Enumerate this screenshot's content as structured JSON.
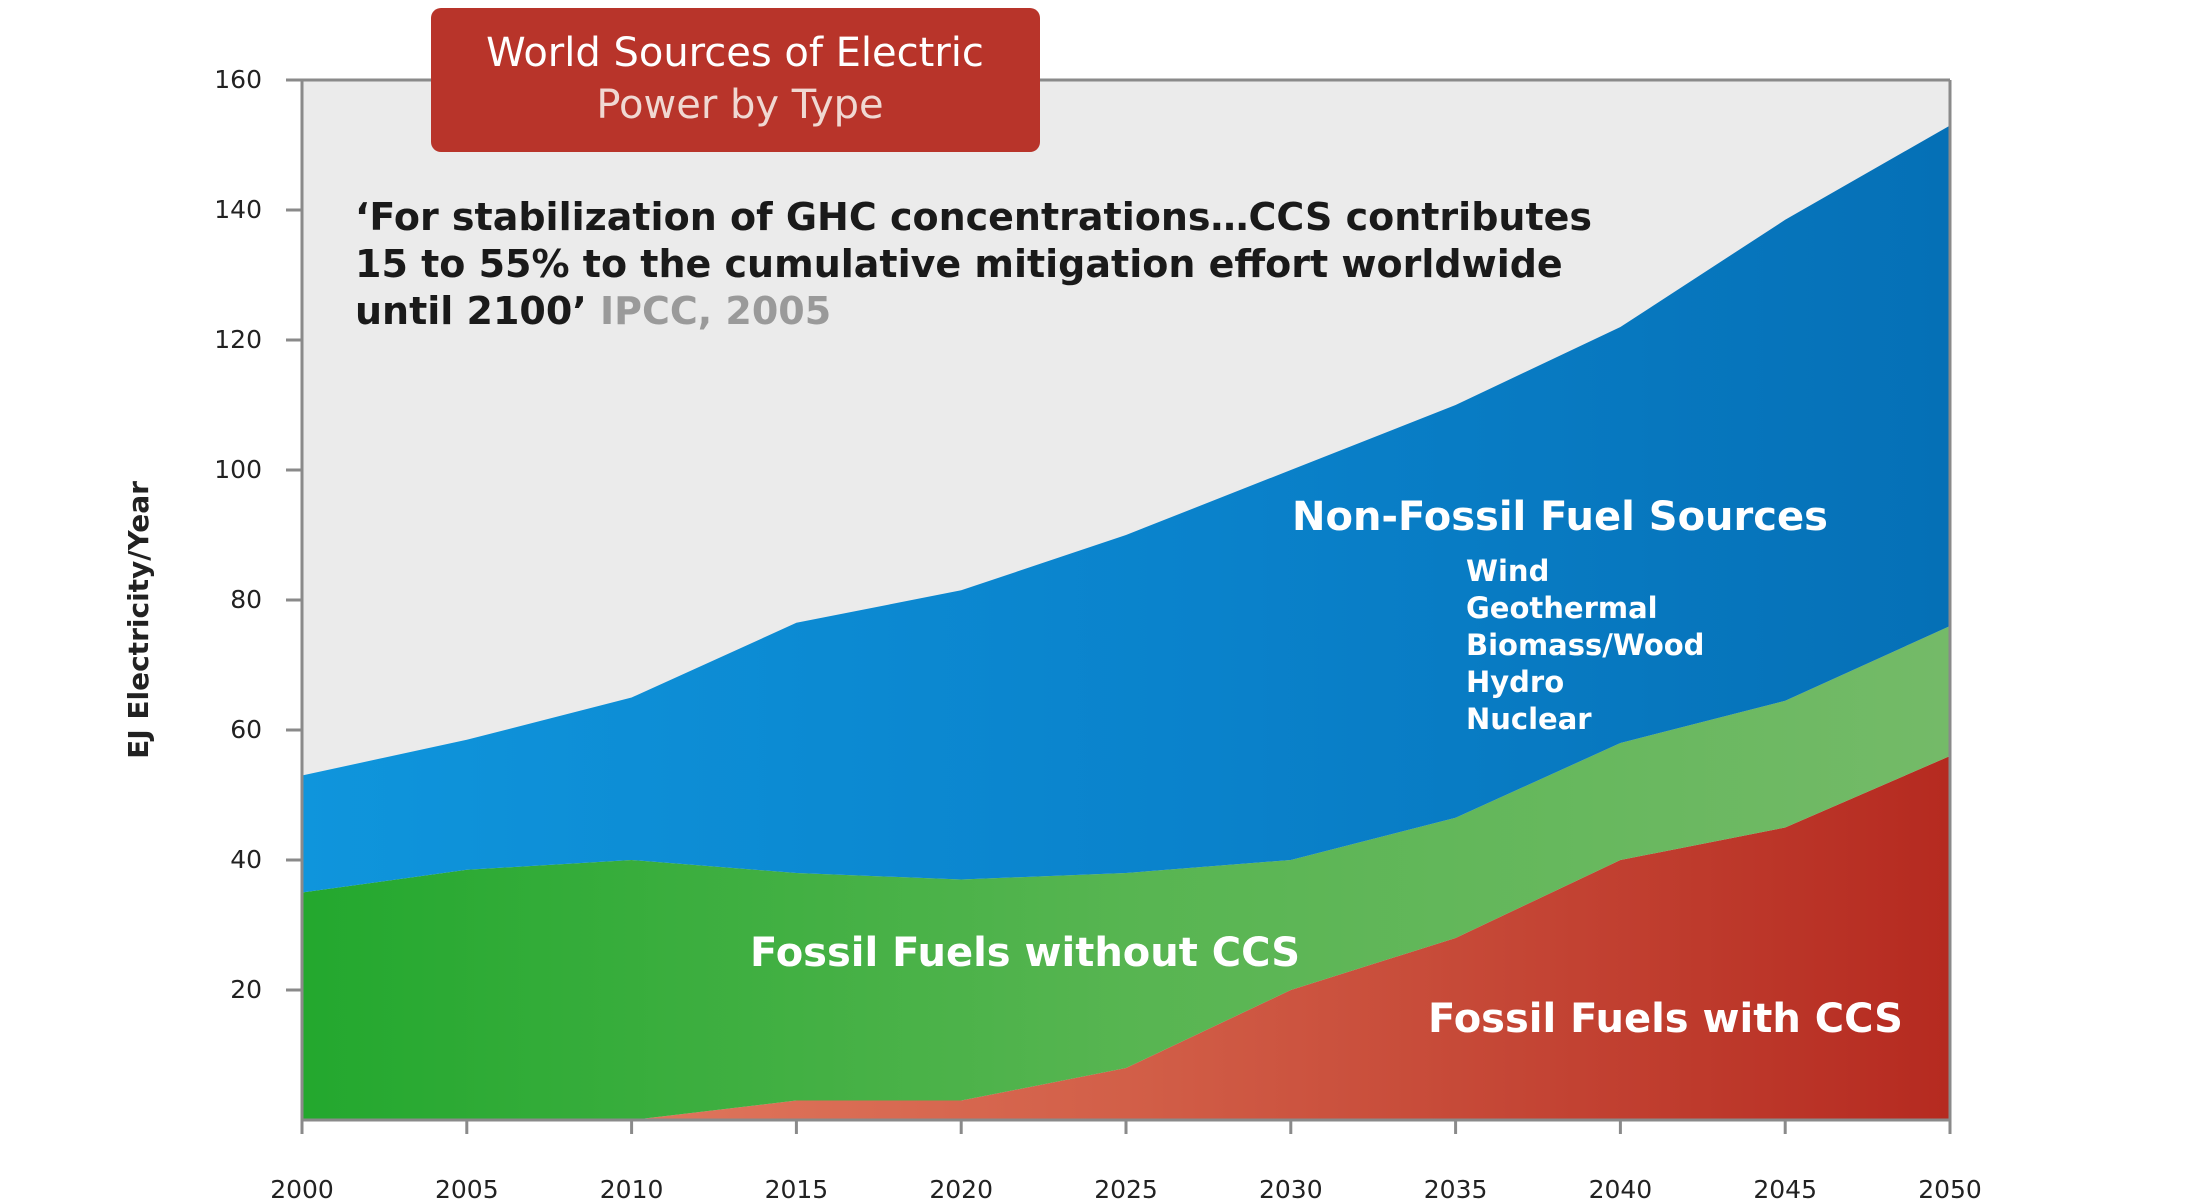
{
  "chart_data": {
    "type": "area",
    "stacked": true,
    "title": "World Sources of Electric",
    "subtitle": "Power by Type",
    "xlabel": "",
    "ylabel": "EJ Electricity/Year",
    "x": [
      2000,
      2005,
      2010,
      2015,
      2020,
      2025,
      2030,
      2035,
      2040,
      2045,
      2050
    ],
    "xlim": [
      2000,
      2050
    ],
    "ylim": [
      0,
      160
    ],
    "yticks": [
      20,
      40,
      60,
      80,
      100,
      120,
      140,
      160
    ],
    "series": [
      {
        "name": "Fossil Fuels with CCS",
        "color": "#c4392b",
        "values": [
          0,
          0,
          0,
          3,
          3,
          8,
          20,
          28,
          40,
          45,
          56
        ]
      },
      {
        "name": "Fossil Fuels without CCS",
        "color": "#4fb348",
        "values": [
          35,
          38.5,
          40,
          35,
          34,
          30,
          20,
          18.5,
          18,
          19.5,
          20
        ]
      },
      {
        "name": "Non-Fossil Fuel Sources",
        "color": "#0a7cc6",
        "values": [
          18,
          20,
          25,
          38.5,
          44.5,
          52,
          60,
          63.5,
          64,
          74,
          77
        ]
      }
    ],
    "non_fossil_items": [
      "Wind",
      "Geothermal",
      "Biomass/Wood",
      "Hydro",
      "Nuclear"
    ],
    "quote": {
      "lines": [
        "‘For stabilization of GHC concentrations…CCS contributes",
        "15 to 55% to the cumulative mitigation effort worldwide",
        "until 2100’"
      ],
      "source": "IPCC, 2005"
    }
  }
}
